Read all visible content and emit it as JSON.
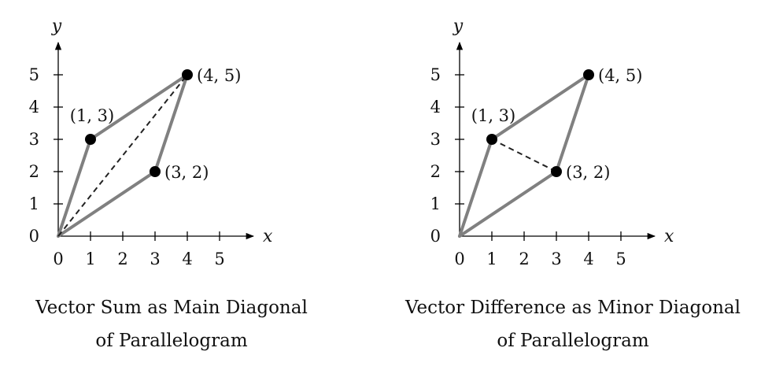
{
  "chart_data": [
    {
      "type": "diagram",
      "xlabel": "x",
      "ylabel": "y",
      "xlim": [
        0,
        5
      ],
      "ylim": [
        0,
        5
      ],
      "x_ticks": [
        0,
        1,
        2,
        3,
        4,
        5
      ],
      "y_ticks": [
        0,
        1,
        2,
        3,
        4,
        5
      ],
      "vertices": [
        {
          "x": 0,
          "y": 0
        },
        {
          "x": 1,
          "y": 3,
          "label": "(1, 3)"
        },
        {
          "x": 4,
          "y": 5,
          "label": "(4, 5)"
        },
        {
          "x": 3,
          "y": 2,
          "label": "(3, 2)"
        }
      ],
      "dashed_diagonal": [
        [
          0,
          0
        ],
        [
          4,
          5
        ]
      ],
      "caption_lines": [
        "Vector Sum as Main Diagonal",
        "of Parallelogram"
      ]
    },
    {
      "type": "diagram",
      "xlabel": "x",
      "ylabel": "y",
      "xlim": [
        0,
        5
      ],
      "ylim": [
        0,
        5
      ],
      "x_ticks": [
        0,
        1,
        2,
        3,
        4,
        5
      ],
      "y_ticks": [
        0,
        1,
        2,
        3,
        4,
        5
      ],
      "vertices": [
        {
          "x": 0,
          "y": 0
        },
        {
          "x": 1,
          "y": 3,
          "label": "(1, 3)"
        },
        {
          "x": 4,
          "y": 5,
          "label": "(4, 5)"
        },
        {
          "x": 3,
          "y": 2,
          "label": "(3, 2)"
        }
      ],
      "dashed_diagonal": [
        [
          1,
          3
        ],
        [
          3,
          2
        ]
      ],
      "caption_lines": [
        "Vector Difference as Minor Diagonal",
        "of Parallelogram"
      ]
    }
  ],
  "colors": {
    "edge": "#808080",
    "point": "#000000",
    "axis": "#000000"
  }
}
